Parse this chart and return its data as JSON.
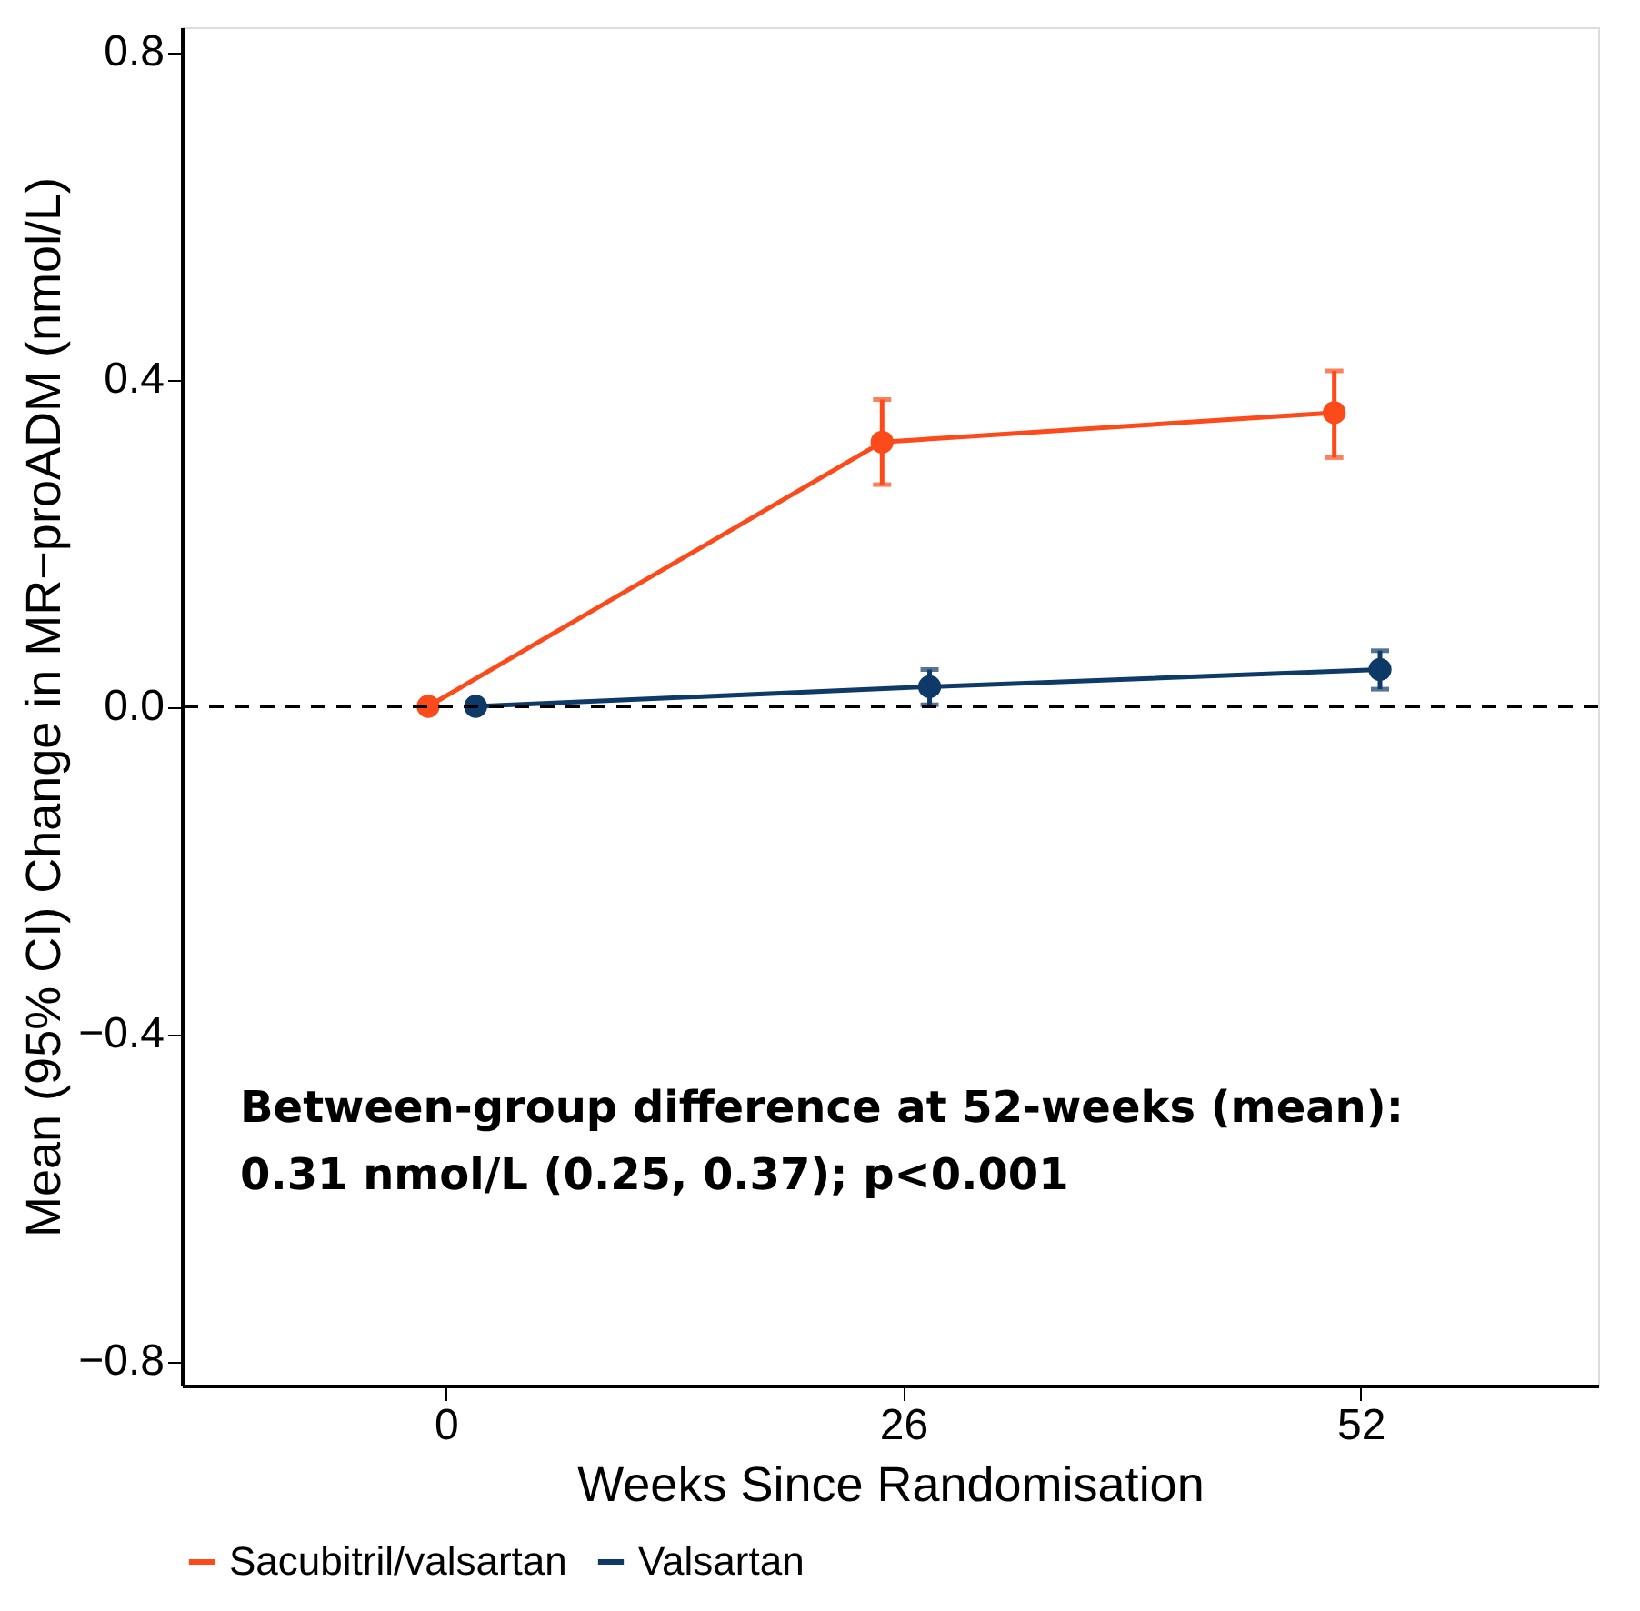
{
  "chart_data": {
    "type": "line",
    "xlabel": "Weeks Since Randomisation",
    "ylabel": "Mean (95% CI) Change in MR−proADM (nmol/L)",
    "xlim": [
      -15,
      65.5
    ],
    "xticks": [
      0,
      26,
      52
    ],
    "ylim": [
      -0.83,
      0.83
    ],
    "yticks": [
      {
        "value": -0.8,
        "label": "−0.8"
      },
      {
        "value": -0.4,
        "label": "−0.4"
      },
      {
        "value": 0,
        "label": "0.0"
      },
      0.4,
      0.8
    ],
    "series": [
      {
        "name": "Sacubitril/valsartan",
        "color": "#fc4a1a",
        "x": [
          -1,
          24.8,
          50.5
        ],
        "values": [
          0.0,
          0.323,
          0.359
        ],
        "errors": [
          null,
          [
            0.271,
            0.375
          ],
          [
            0.304,
            0.41
          ]
        ]
      },
      {
        "name": "Valsartan",
        "color": "#0e3a68",
        "x": [
          1.7,
          27.5,
          53.1
        ],
        "values": [
          0.0,
          0.024,
          0.045
        ],
        "errors": [
          null,
          [
            0.002,
            0.045
          ],
          [
            0.021,
            0.068
          ]
        ]
      }
    ],
    "ref_lines": [
      {
        "axis": "y",
        "value": 0,
        "line_style": "dashed",
        "color": "#000000"
      }
    ],
    "annotations": [
      "Between-group difference at 52-weeks (mean):",
      "0.31 nmol/L (0.25, 0.37); p<0.001"
    ],
    "marker": "circle",
    "line_style": "solid",
    "grid": false,
    "legend": "bottom"
  }
}
